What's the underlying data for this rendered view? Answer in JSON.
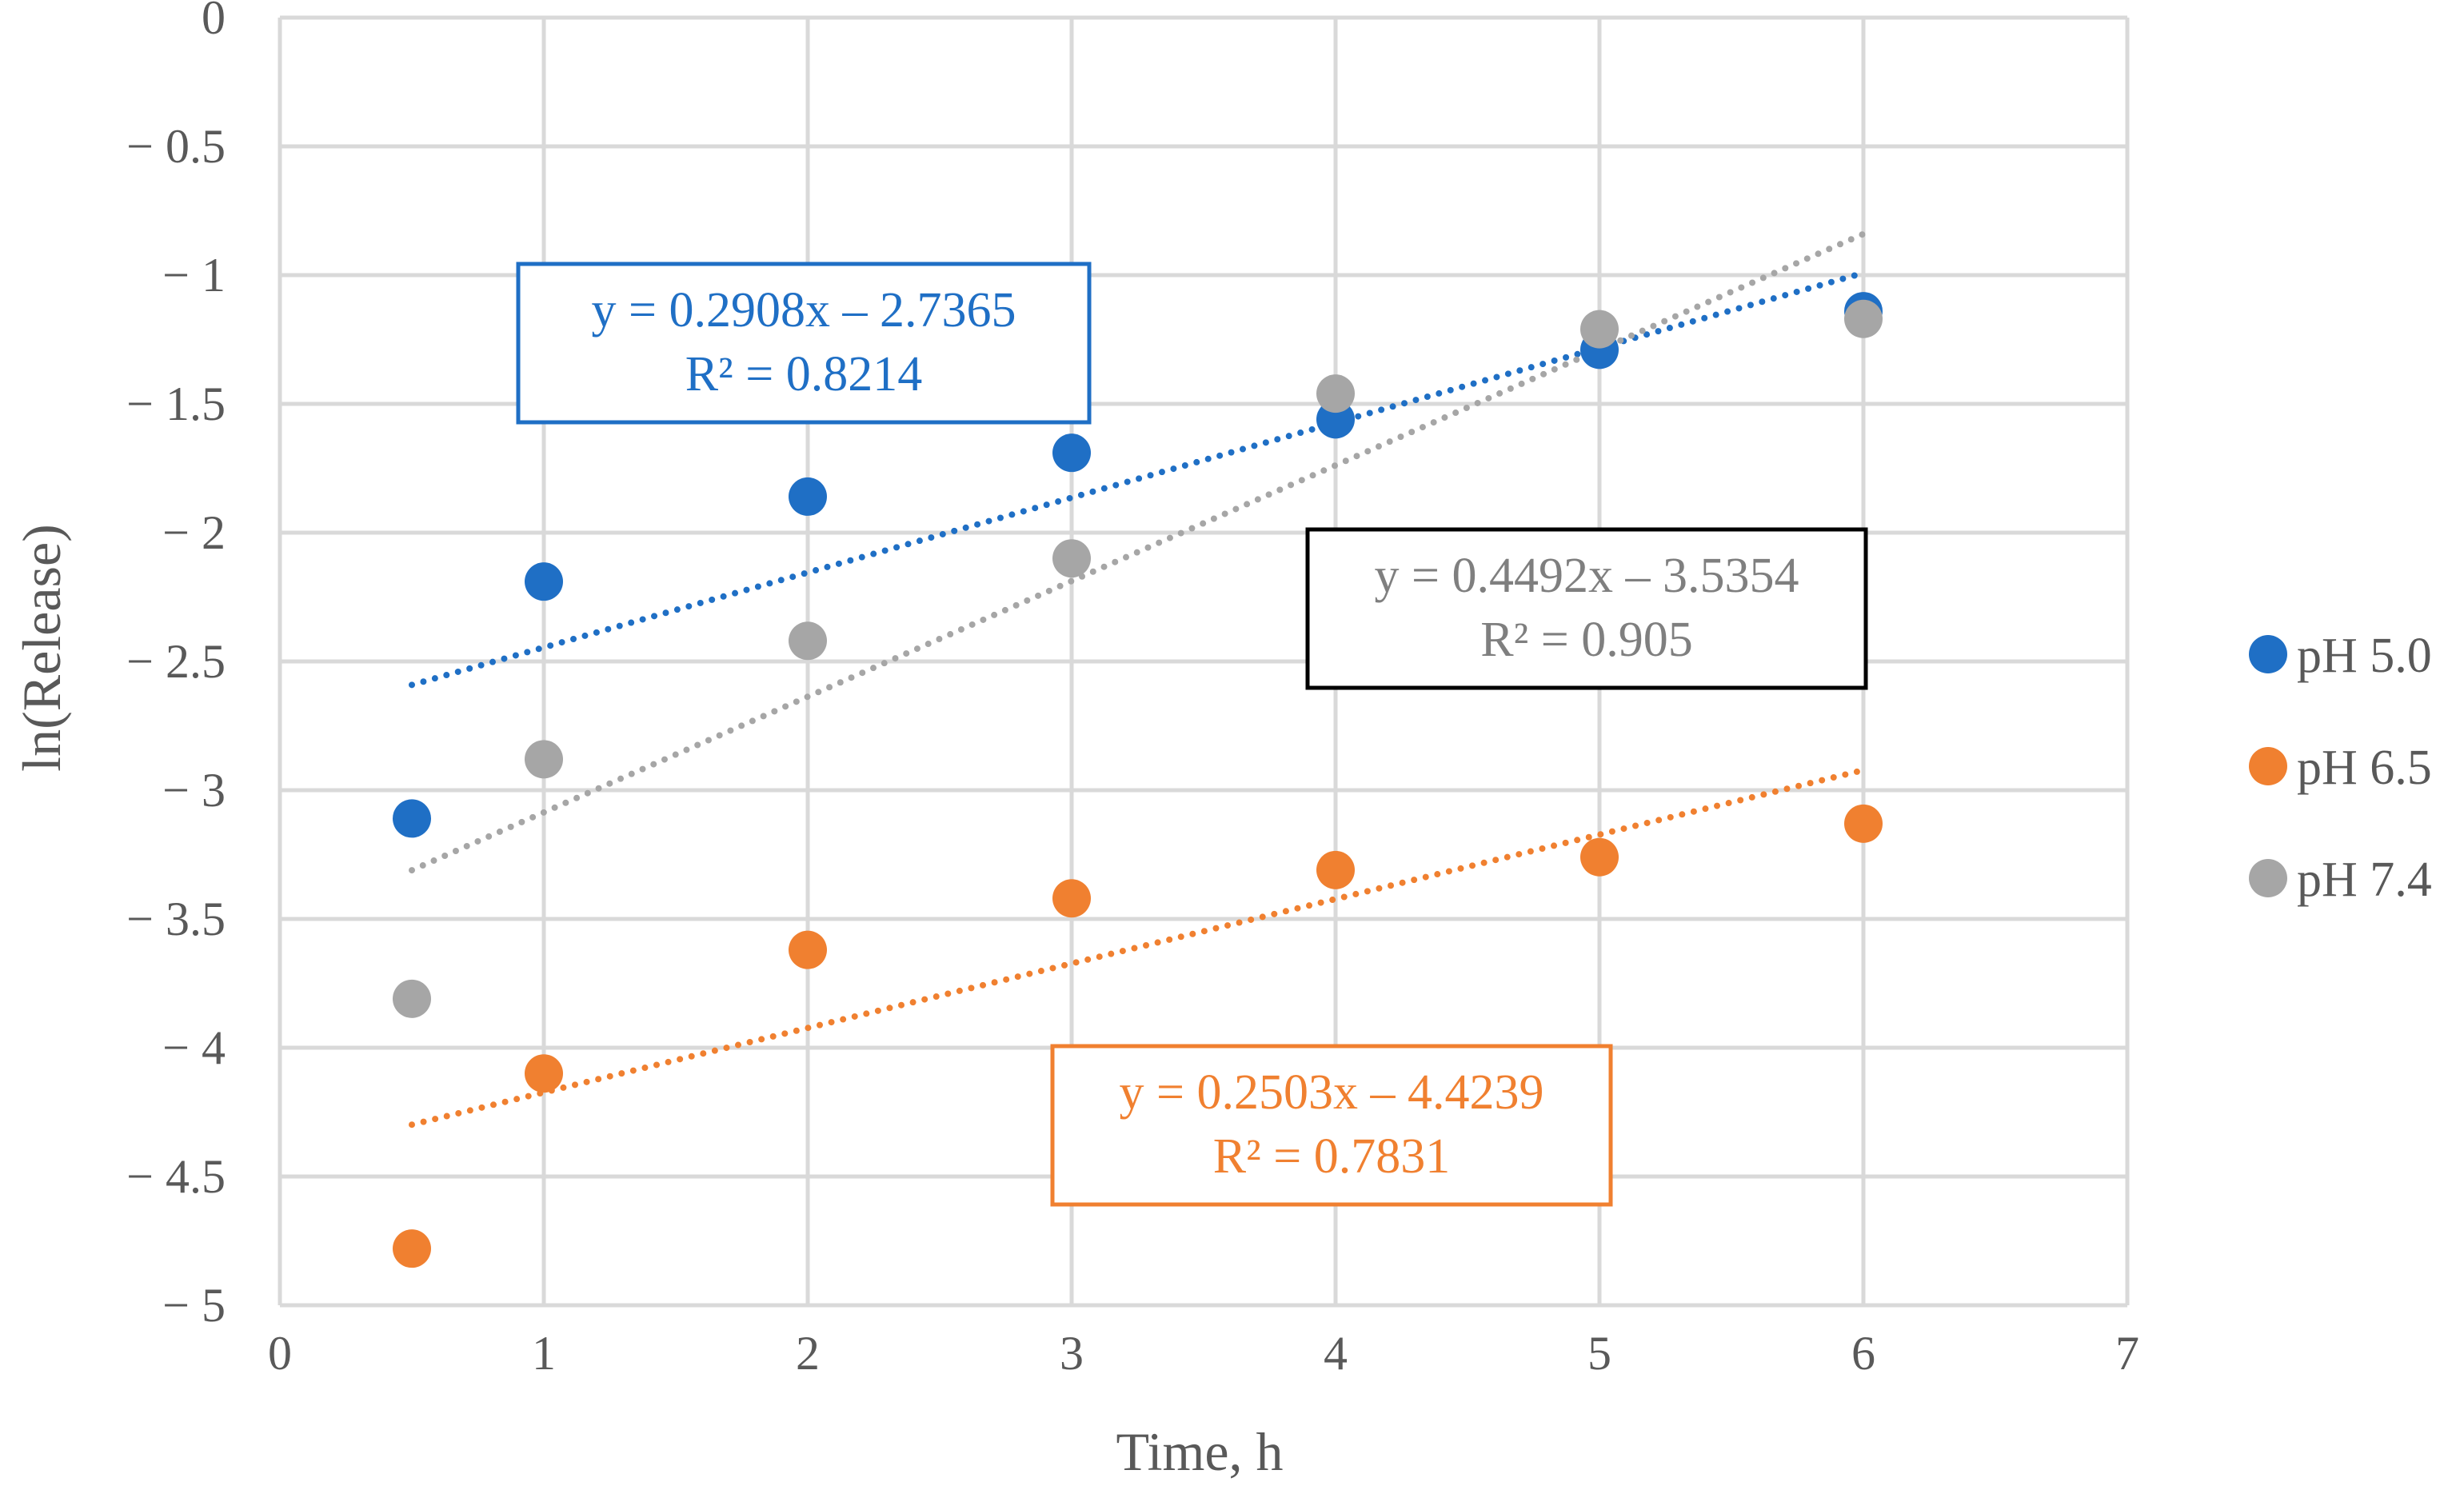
{
  "chart_data": {
    "type": "scatter",
    "title": "",
    "xlabel": "Time, h",
    "ylabel": "ln(Release)",
    "xlim": [
      0,
      7
    ],
    "ylim": [
      -5,
      0
    ],
    "x_ticks": [
      0,
      1,
      2,
      3,
      4,
      5,
      6,
      7
    ],
    "y_ticks": [
      0,
      -0.5,
      -1,
      -1.5,
      -2,
      -2.5,
      -3,
      -3.5,
      -4,
      -4.5,
      -5
    ],
    "x_tick_labels": [
      "0",
      "1",
      "2",
      "3",
      "4",
      "5",
      "6",
      "7"
    ],
    "y_tick_labels": [
      "0",
      "− 0.5",
      "− 1",
      "− 1.5",
      "− 2",
      "− 2.5",
      "− 3",
      "− 3.5",
      "− 4",
      "− 4.5",
      "− 5"
    ],
    "grid": true,
    "legend_position": "right",
    "series": [
      {
        "name": "pH 5.0",
        "color": "#1f6fc5",
        "x": [
          0.5,
          1,
          2,
          3,
          4,
          5,
          6
        ],
        "y": [
          -3.11,
          -2.19,
          -1.86,
          -1.69,
          -1.56,
          -1.29,
          -1.14
        ],
        "trendline": {
          "slope": 0.2908,
          "intercept": -2.7365,
          "x_range": [
            0.5,
            6
          ]
        },
        "equation": "y = 0.2908x – 2.7365",
        "r2": "R² = 0.8214",
        "box_color": "#1f6fc5"
      },
      {
        "name": "pH 6.5",
        "color": "#f08030",
        "x": [
          0.5,
          1,
          2,
          3,
          4,
          5,
          6
        ],
        "y": [
          -4.78,
          -4.1,
          -3.62,
          -3.42,
          -3.31,
          -3.26,
          -3.13
        ],
        "trendline": {
          "slope": 0.2503,
          "intercept": -4.4239,
          "x_range": [
            0.5,
            6
          ]
        },
        "equation": "y = 0.2503x – 4.4239",
        "r2": "R² = 0.7831",
        "box_color": "#f08030"
      },
      {
        "name": "pH 7.4",
        "color": "#a6a6a6",
        "x": [
          0.5,
          1,
          2,
          3,
          4,
          5,
          6
        ],
        "y": [
          -3.81,
          -2.88,
          -2.42,
          -2.1,
          -1.46,
          -1.21,
          -1.17
        ],
        "trendline": {
          "slope": 0.4492,
          "intercept": -3.5354,
          "x_range": [
            0.5,
            6
          ]
        },
        "equation": "y = 0.4492x – 3.5354",
        "r2": "R² = 0.905",
        "box_color": "#000000"
      }
    ]
  }
}
